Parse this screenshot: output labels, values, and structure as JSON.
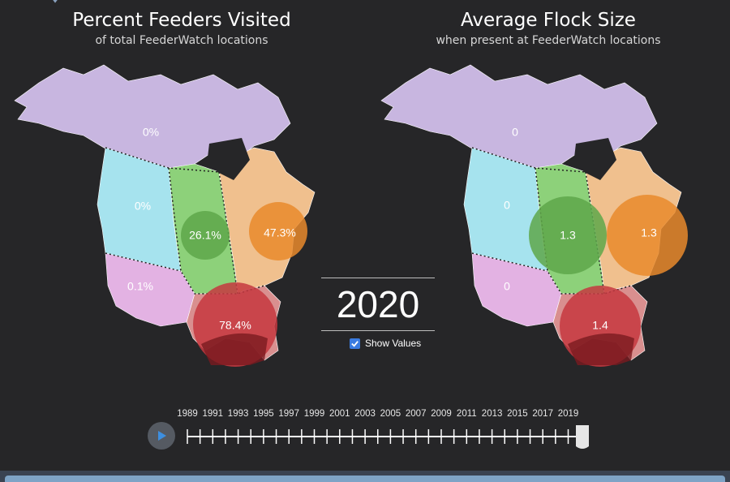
{
  "left_panel": {
    "title": "Percent Feeders Visited",
    "subtitle": "of total FeederWatch locations",
    "values": {
      "north": "0%",
      "west": "0%",
      "central": "26.1%",
      "northeast": "47.3%",
      "southwest": "0.1%",
      "southeast": "78.4%"
    }
  },
  "right_panel": {
    "title": "Average Flock Size",
    "subtitle": "when present at FeederWatch locations",
    "values": {
      "north": "0",
      "west": "0",
      "central": "1.3",
      "northeast": "1.3",
      "southwest": "0",
      "southeast": "1.4"
    }
  },
  "region_colors": {
    "north": "#c8b6e0",
    "west": "#a6e3ee",
    "central": "#8dd17a",
    "northeast": "#f0c08e",
    "southwest": "#e3b2e3",
    "southeast": "#d98f8f"
  },
  "bubble_colors": {
    "central": "#5ea74a",
    "northeast": "#e98a2c",
    "southeast": "#c6383f"
  },
  "year": "2020",
  "show_values": {
    "label": "Show Values",
    "checked": true
  },
  "timeline": {
    "labels": [
      "1989",
      "1991",
      "1993",
      "1995",
      "1997",
      "1999",
      "2001",
      "2003",
      "2005",
      "2007",
      "2009",
      "2011",
      "2013",
      "2015",
      "2017",
      "2019"
    ],
    "current": "2020"
  }
}
